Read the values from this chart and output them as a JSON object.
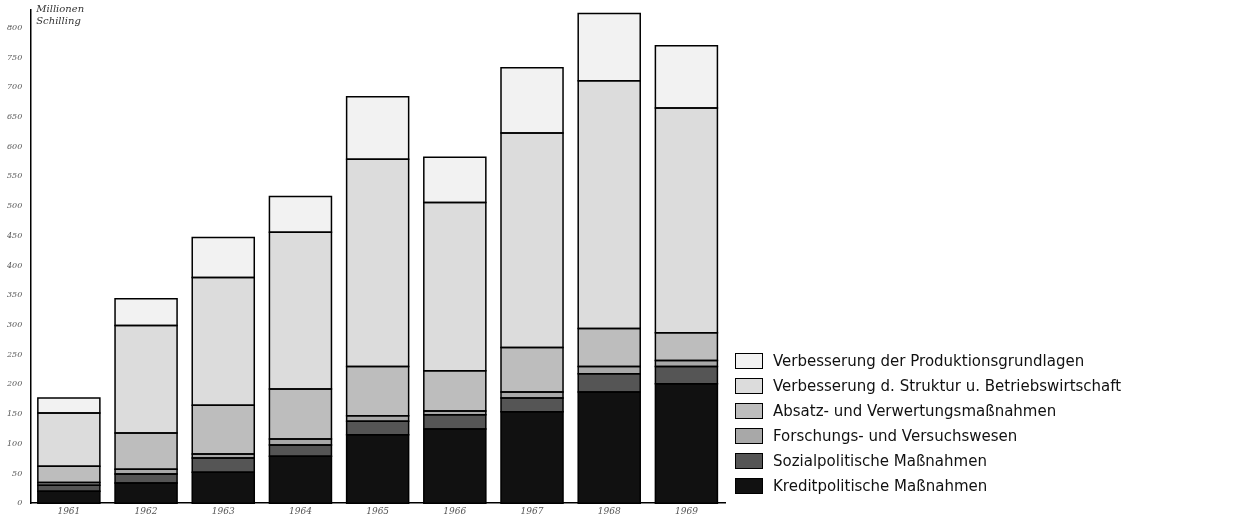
{
  "chart_data": {
    "type": "bar",
    "stacked": true,
    "ylabel": "Millionen Schilling",
    "categories": [
      "1961",
      "1962",
      "1963",
      "1964",
      "1965",
      "1966",
      "1967",
      "1968",
      "1969"
    ],
    "series": [
      {
        "name": "Kreditpolitische Maßnahmen",
        "color": "#111111",
        "values": [
          20,
          34,
          52,
          79,
          115,
          125,
          154,
          187,
          201
        ]
      },
      {
        "name": "Sozialpolitische Maßnahmen",
        "color": "#555555",
        "values": [
          10,
          15,
          24,
          19,
          23,
          24,
          23,
          31,
          29
        ]
      },
      {
        "name": "Forschungs- und Versuchswesen",
        "color": "#a8a8a8",
        "values": [
          5,
          8,
          7,
          10,
          9,
          6,
          10,
          12,
          10
        ]
      },
      {
        "name": "Absatz- und Verwertungsmaßnahmen",
        "color": "#bdbdbd",
        "values": [
          27,
          61,
          82,
          84,
          83,
          68,
          75,
          64,
          47
        ]
      },
      {
        "name": "Verbesserung d. Struktur u. Betriebswirtschaft",
        "color": "#dcdcdc",
        "values": [
          90,
          181,
          215,
          264,
          349,
          283,
          361,
          417,
          378
        ]
      },
      {
        "name": "Verbesserung der Produktionsgrundlagen",
        "color": "#f2f2f2",
        "values": [
          25,
          45,
          67,
          60,
          105,
          76,
          110,
          113,
          105
        ]
      }
    ],
    "ylim": [
      0,
      830
    ],
    "yticks": [
      0,
      50,
      100,
      150,
      200,
      250,
      300,
      350,
      400,
      450,
      500,
      550,
      600,
      650,
      700,
      750,
      800
    ],
    "grid": false,
    "legend": "bottom right"
  }
}
